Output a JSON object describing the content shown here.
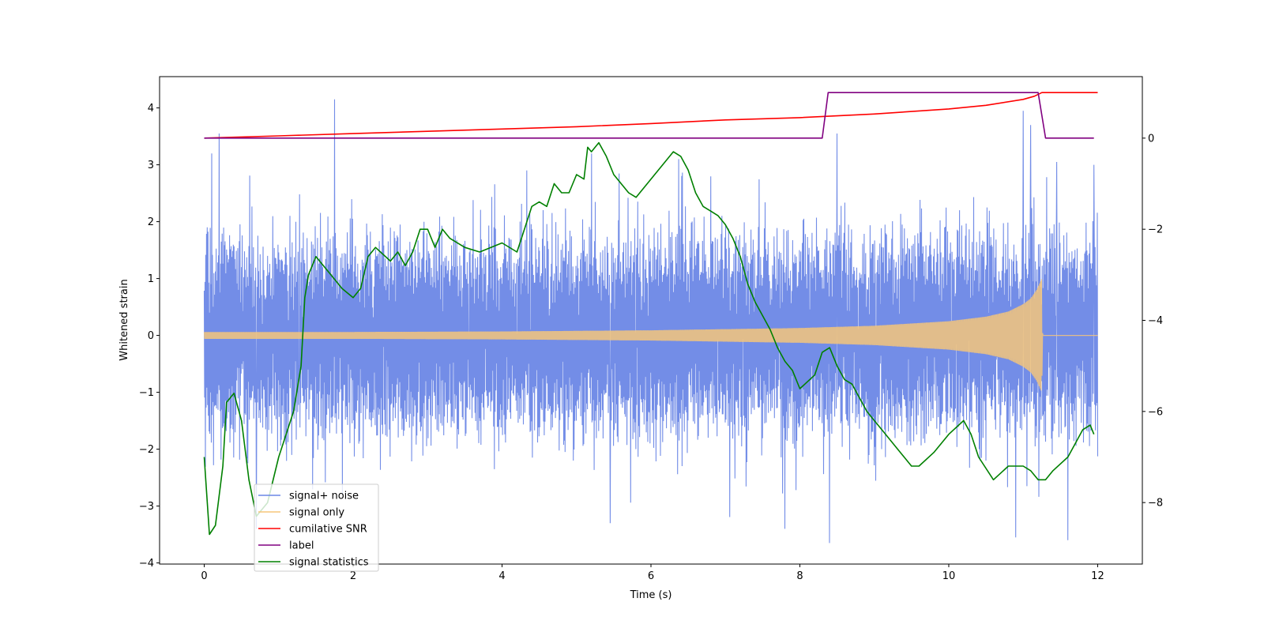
{
  "chart_data": {
    "type": "line",
    "title": "",
    "xlabel": "Time (s)",
    "ylabel": "Whitened strain",
    "y2label": "",
    "xlim": [
      -0.6,
      12.6
    ],
    "ylim": [
      -4.02,
      4.55
    ],
    "y2lim": [
      -9.35,
      1.35
    ],
    "x_ticks": [
      0,
      2,
      4,
      6,
      8,
      10,
      12
    ],
    "x_tick_labels": [
      "0",
      "2",
      "4",
      "6",
      "8",
      "10",
      "12"
    ],
    "y_ticks": [
      -4,
      -3,
      -2,
      -1,
      0,
      1,
      2,
      3,
      4
    ],
    "y_tick_labels": [
      "−4",
      "−3",
      "−2",
      "−1",
      "0",
      "1",
      "2",
      "3",
      "4"
    ],
    "y2_ticks": [
      -8,
      -6,
      -4,
      -2,
      0
    ],
    "y2_tick_labels": [
      "−8",
      "−6",
      "−4",
      "−2",
      "0"
    ],
    "legend_position": "lower-left",
    "series": [
      {
        "name": "signal+ noise",
        "axis": "left",
        "color": "#6b87e6",
        "style": "dense noise band",
        "x_range": [
          0,
          12
        ],
        "typical_low": -1.6,
        "typical_high": 1.6,
        "peaks": [
          {
            "x": 0.1,
            "y": 3.2
          },
          {
            "x": 0.2,
            "y": 3.55
          },
          {
            "x": 1.75,
            "y": 4.15
          },
          {
            "x": 5.2,
            "y": 3.2
          },
          {
            "x": 8.5,
            "y": 3.55
          },
          {
            "x": 11.0,
            "y": 3.95
          },
          {
            "x": 11.1,
            "y": 3.7
          },
          {
            "x": 11.45,
            "y": 3.05
          },
          {
            "x": 11.95,
            "y": 3.0
          }
        ],
        "troughs": [
          {
            "x": 0.7,
            "y": -3.4
          },
          {
            "x": 5.45,
            "y": -3.3
          },
          {
            "x": 7.8,
            "y": -3.4
          },
          {
            "x": 8.4,
            "y": -3.65
          },
          {
            "x": 10.9,
            "y": -3.55
          },
          {
            "x": 11.6,
            "y": -3.6
          }
        ]
      },
      {
        "name": "signal only",
        "axis": "left",
        "color": "#f5c57a",
        "style": "chirp envelope",
        "envelope": [
          {
            "x": 0,
            "y": 0.06
          },
          {
            "x": 2,
            "y": 0.06
          },
          {
            "x": 4,
            "y": 0.07
          },
          {
            "x": 6,
            "y": 0.09
          },
          {
            "x": 8,
            "y": 0.13
          },
          {
            "x": 9,
            "y": 0.17
          },
          {
            "x": 10,
            "y": 0.25
          },
          {
            "x": 10.5,
            "y": 0.33
          },
          {
            "x": 10.8,
            "y": 0.42
          },
          {
            "x": 11.0,
            "y": 0.55
          },
          {
            "x": 11.1,
            "y": 0.65
          },
          {
            "x": 11.18,
            "y": 0.8
          },
          {
            "x": 11.25,
            "y": 1.0
          },
          {
            "x": 11.26,
            "y": 0.0
          },
          {
            "x": 12.0,
            "y": 0.0
          }
        ]
      },
      {
        "name": "cumilative SNR",
        "axis": "right",
        "color": "#ff0000",
        "x": [
          0,
          1,
          2,
          3,
          4,
          5,
          6,
          7,
          8,
          9,
          10,
          10.5,
          11.0,
          11.15,
          11.25,
          11.3,
          12.0
        ],
        "y": [
          0,
          0.05,
          0.1,
          0.15,
          0.2,
          0.25,
          0.32,
          0.4,
          0.45,
          0.53,
          0.64,
          0.72,
          0.85,
          0.92,
          1.0,
          1.0,
          1.0
        ]
      },
      {
        "name": "label",
        "axis": "right",
        "color": "#800080",
        "x": [
          0,
          8.3,
          8.38,
          11.2,
          11.25,
          11.3,
          11.95
        ],
        "y": [
          0,
          0,
          1,
          1,
          0.5,
          0,
          0
        ]
      },
      {
        "name": "signal statistics",
        "axis": "right",
        "color": "#008000",
        "x": [
          0,
          0.07,
          0.15,
          0.25,
          0.3,
          0.4,
          0.5,
          0.6,
          0.7,
          0.85,
          1.0,
          1.1,
          1.2,
          1.3,
          1.35,
          1.4,
          1.5,
          1.6,
          1.7,
          1.85,
          2.0,
          2.1,
          2.2,
          2.3,
          2.5,
          2.6,
          2.7,
          2.8,
          2.9,
          3.0,
          3.1,
          3.2,
          3.3,
          3.5,
          3.7,
          4.0,
          4.2,
          4.3,
          4.4,
          4.5,
          4.6,
          4.7,
          4.8,
          4.9,
          5.0,
          5.1,
          5.15,
          5.2,
          5.3,
          5.4,
          5.5,
          5.6,
          5.7,
          5.8,
          6.0,
          6.2,
          6.3,
          6.4,
          6.5,
          6.6,
          6.7,
          6.8,
          6.9,
          7.0,
          7.1,
          7.2,
          7.3,
          7.4,
          7.5,
          7.6,
          7.7,
          7.8,
          7.9,
          8.0,
          8.2,
          8.3,
          8.4,
          8.5,
          8.6,
          8.7,
          8.8,
          8.9,
          9.0,
          9.1,
          9.3,
          9.5,
          9.6,
          9.8,
          10.0,
          10.2,
          10.3,
          10.4,
          10.6,
          10.8,
          11.0,
          11.1,
          11.2,
          11.3,
          11.4,
          11.6,
          11.7,
          11.8,
          11.9,
          11.95
        ],
        "y": [
          -7.0,
          -8.7,
          -8.5,
          -7.2,
          -5.8,
          -5.6,
          -6.2,
          -7.5,
          -8.3,
          -8.0,
          -7.0,
          -6.5,
          -6.0,
          -5.0,
          -3.5,
          -3.0,
          -2.6,
          -2.8,
          -3.0,
          -3.3,
          -3.5,
          -3.3,
          -2.6,
          -2.4,
          -2.7,
          -2.5,
          -2.8,
          -2.5,
          -2.0,
          -2.0,
          -2.4,
          -2.0,
          -2.2,
          -2.4,
          -2.5,
          -2.3,
          -2.5,
          -2.0,
          -1.5,
          -1.4,
          -1.5,
          -1.0,
          -1.2,
          -1.2,
          -0.8,
          -0.9,
          -0.2,
          -0.3,
          -0.1,
          -0.4,
          -0.8,
          -1.0,
          -1.2,
          -1.3,
          -0.9,
          -0.5,
          -0.3,
          -0.4,
          -0.7,
          -1.2,
          -1.5,
          -1.6,
          -1.7,
          -1.9,
          -2.2,
          -2.6,
          -3.2,
          -3.6,
          -3.9,
          -4.2,
          -4.6,
          -4.9,
          -5.1,
          -5.5,
          -5.2,
          -4.7,
          -4.6,
          -5.0,
          -5.3,
          -5.4,
          -5.7,
          -6.0,
          -6.2,
          -6.4,
          -6.8,
          -7.2,
          -7.2,
          -6.9,
          -6.5,
          -6.2,
          -6.5,
          -7.0,
          -7.5,
          -7.2,
          -7.2,
          -7.3,
          -7.5,
          -7.5,
          -7.3,
          -7.0,
          -6.7,
          -6.4,
          -6.3,
          -6.5
        ]
      }
    ]
  }
}
